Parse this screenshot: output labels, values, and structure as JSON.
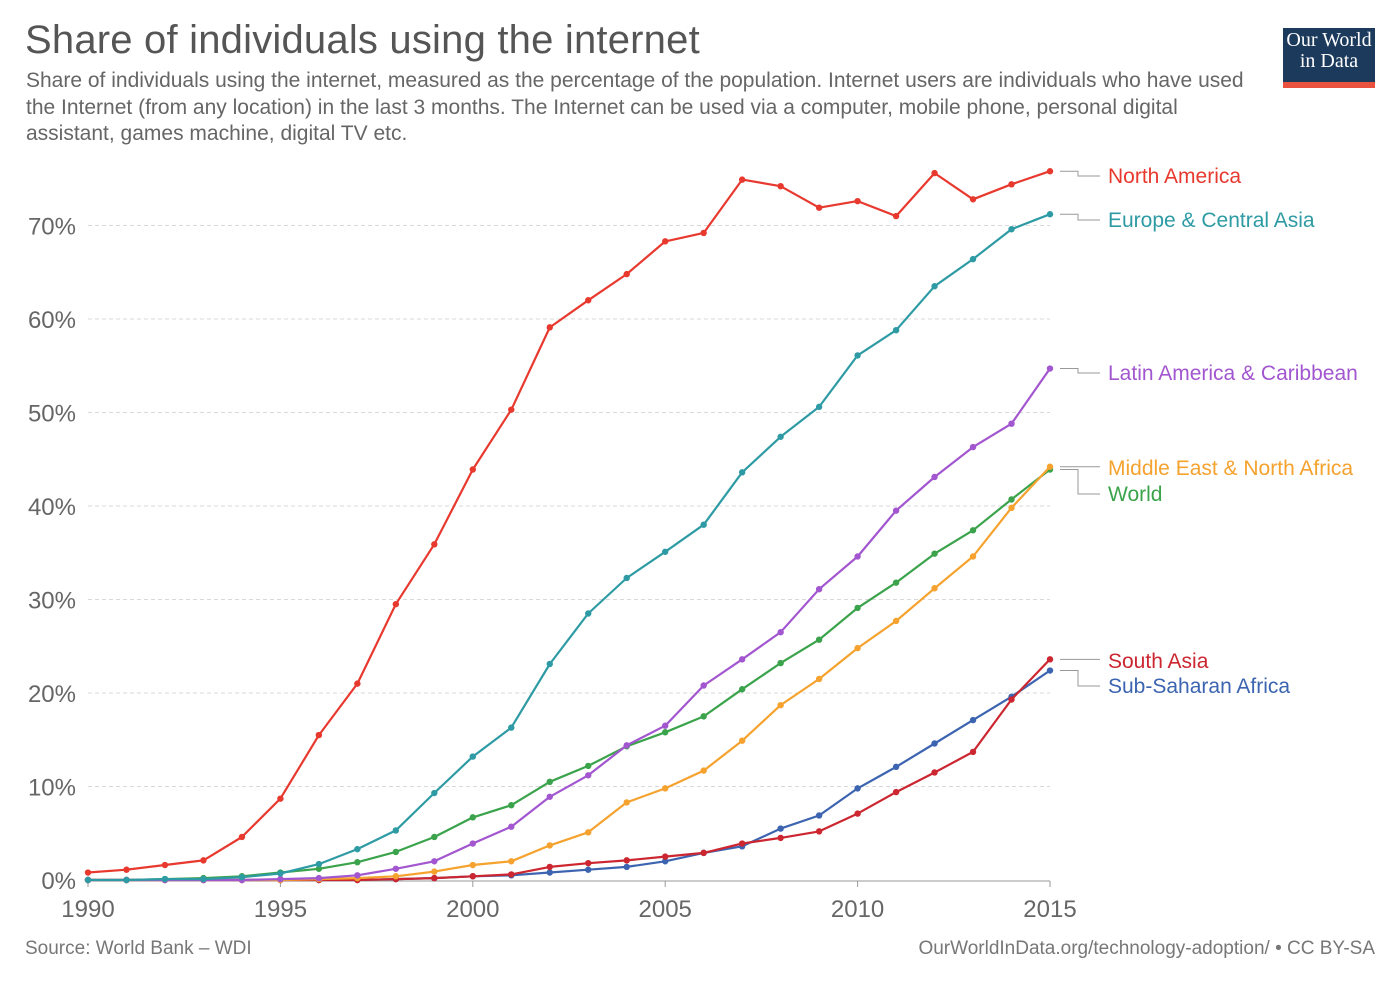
{
  "header": {
    "title": "Share of individuals using the internet",
    "subtitle": "Share of individuals using the internet, measured as the percentage of the population. Internet users are individuals who have used the Internet (from any location) in the last 3 months. The Internet can be used via a computer, mobile phone, personal digital assistant, games machine, digital TV etc.",
    "logo_line1": "Our World",
    "logo_line2": "in Data"
  },
  "footer": {
    "source": "Source: World Bank – WDI",
    "link": "OurWorldInData.org/technology-adoption/ • CC BY-SA"
  },
  "colors": {
    "logo_bg": "#1c3a5c",
    "logo_accent": "#e8523f"
  },
  "chart_data": {
    "type": "line",
    "title": "Share of individuals using the internet",
    "xlabel": "",
    "ylabel": "",
    "xlim": [
      1990,
      2015
    ],
    "ylim": [
      0,
      77
    ],
    "x_ticks": [
      "1990",
      "1995",
      "2000",
      "2005",
      "2010",
      "2015"
    ],
    "y_ticks": [
      "0%",
      "10%",
      "20%",
      "30%",
      "40%",
      "50%",
      "60%",
      "70%"
    ],
    "grid": "horizontal dashed",
    "legend": "right, labels at line ends",
    "x": [
      1990,
      1991,
      1992,
      1993,
      1994,
      1995,
      1996,
      1997,
      1998,
      1999,
      2000,
      2001,
      2002,
      2003,
      2004,
      2005,
      2006,
      2007,
      2008,
      2009,
      2010,
      2011,
      2012,
      2013,
      2014,
      2015
    ],
    "series": [
      {
        "name": "North America",
        "color": "#e8392f",
        "values": [
          0.8,
          1.1,
          1.6,
          2.1,
          4.6,
          8.7,
          15.5,
          21.0,
          29.5,
          35.9,
          43.9,
          50.3,
          59.1,
          62.0,
          64.8,
          68.3,
          69.2,
          74.9,
          74.2,
          71.9,
          72.6,
          71.0,
          75.6,
          72.8,
          74.4,
          75.8
        ]
      },
      {
        "name": "Europe & Central Asia",
        "color": "#2e9ba4",
        "values": [
          0.0,
          0.0,
          0.1,
          0.1,
          0.3,
          0.7,
          1.7,
          3.3,
          5.3,
          9.3,
          13.2,
          16.3,
          23.1,
          28.5,
          32.3,
          35.1,
          38.0,
          43.6,
          47.4,
          50.6,
          56.1,
          58.8,
          63.5,
          66.4,
          69.6,
          71.2
        ]
      },
      {
        "name": "Latin America & Caribbean",
        "color": "#a256cf",
        "values": [
          0.0,
          0.0,
          0.0,
          0.0,
          0.0,
          0.1,
          0.2,
          0.5,
          1.2,
          2.0,
          3.9,
          5.7,
          8.9,
          11.2,
          14.4,
          16.5,
          20.8,
          23.6,
          26.5,
          31.1,
          34.6,
          39.5,
          43.1,
          46.3,
          48.8,
          54.7
        ]
      },
      {
        "name": "Middle East & North Africa",
        "color": "#f5a22f",
        "values": [
          0.0,
          0.0,
          0.0,
          0.0,
          0.0,
          0.0,
          0.1,
          0.2,
          0.4,
          0.9,
          1.6,
          2.0,
          3.7,
          5.1,
          8.3,
          9.8,
          11.7,
          14.9,
          18.7,
          21.5,
          24.8,
          27.7,
          31.2,
          34.6,
          39.8,
          44.2
        ]
      },
      {
        "name": "World",
        "color": "#3aa34b",
        "values": [
          0.0,
          0.0,
          0.1,
          0.2,
          0.4,
          0.8,
          1.2,
          1.9,
          3.0,
          4.6,
          6.7,
          8.0,
          10.5,
          12.2,
          14.3,
          15.8,
          17.5,
          20.4,
          23.2,
          25.7,
          29.1,
          31.8,
          34.9,
          37.4,
          40.7,
          43.9
        ]
      },
      {
        "name": "South Asia",
        "color": "#cc2631",
        "values": [
          0.0,
          0.0,
          0.0,
          0.0,
          0.0,
          0.0,
          0.0,
          0.0,
          0.1,
          0.2,
          0.4,
          0.6,
          1.4,
          1.8,
          2.1,
          2.5,
          2.9,
          3.9,
          4.5,
          5.2,
          7.1,
          9.4,
          11.5,
          13.7,
          19.3,
          23.6
        ]
      },
      {
        "name": "Sub-Saharan Africa",
        "color": "#3c64b0",
        "values": [
          0.0,
          0.0,
          0.0,
          0.0,
          0.0,
          0.0,
          0.0,
          0.0,
          0.1,
          0.2,
          0.4,
          0.5,
          0.8,
          1.1,
          1.4,
          2.0,
          2.9,
          3.6,
          5.5,
          6.9,
          9.8,
          12.1,
          14.6,
          17.1,
          19.6,
          22.4
        ]
      }
    ]
  }
}
